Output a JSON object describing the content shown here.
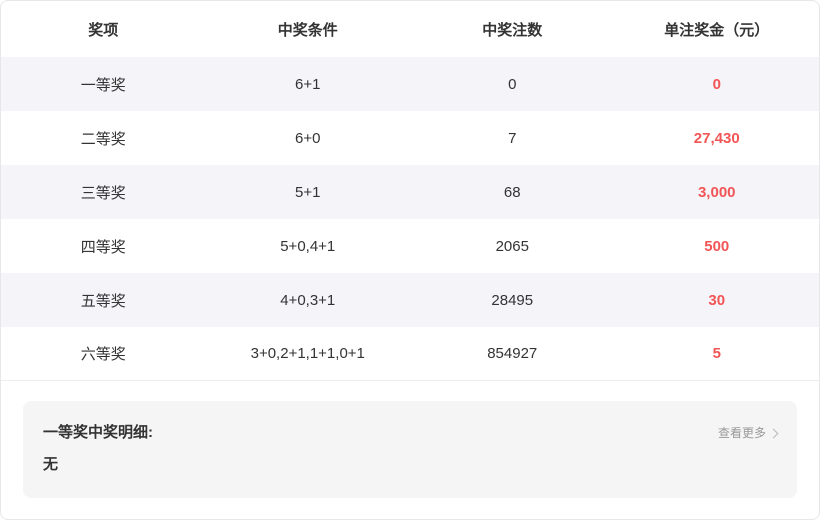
{
  "table": {
    "columns": {
      "prize": "奖项",
      "condition": "中奖条件",
      "count": "中奖注数",
      "amount": "单注奖金（元）"
    },
    "rows": [
      {
        "prize": "一等奖",
        "condition": "6+1",
        "count": "0",
        "amount": "0"
      },
      {
        "prize": "二等奖",
        "condition": "6+0",
        "count": "7",
        "amount": "27,430"
      },
      {
        "prize": "三等奖",
        "condition": "5+1",
        "count": "68",
        "amount": "3,000"
      },
      {
        "prize": "四等奖",
        "condition": "5+0,4+1",
        "count": "2065",
        "amount": "500"
      },
      {
        "prize": "五等奖",
        "condition": "4+0,3+1",
        "count": "28495",
        "amount": "30"
      },
      {
        "prize": "六等奖",
        "condition": "3+0,2+1,1+1,0+1",
        "count": "854927",
        "amount": "5"
      }
    ]
  },
  "detail_panel": {
    "title": "一等奖中奖明细:",
    "content": "无",
    "more_label": "查看更多",
    "chevron_icon": "chevron-right"
  },
  "colors": {
    "amount_red": "#f25555",
    "stripe_bg": "#f4f4f9",
    "panel_bg": "#f5f5f5"
  }
}
